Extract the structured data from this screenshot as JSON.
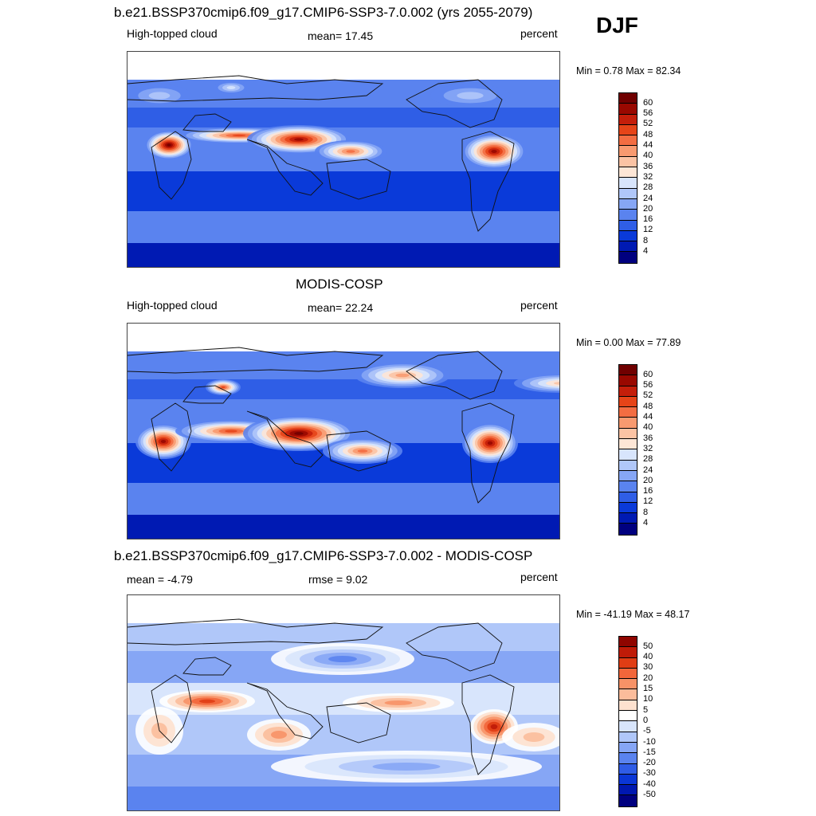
{
  "season": "DJF",
  "palette": {
    "levels12": [
      "#00007f",
      "#001ab3",
      "#0a3ad9",
      "#2f5ee6",
      "#5a83ef",
      "#86a6f5",
      "#b0c7f9",
      "#d8e5fc",
      "#fde6d6",
      "#fbc3a4",
      "#f89a70",
      "#f36d42",
      "#e64418",
      "#c41e0a",
      "#990800",
      "#700000"
    ],
    "diff": [
      "#00007f",
      "#0018b0",
      "#0a36d6",
      "#2f5ce6",
      "#5a83ef",
      "#86a6f5",
      "#b0c7f9",
      "#d8e5fc",
      "#ffffff",
      "#fde1cf",
      "#fbbc9b",
      "#f79267",
      "#f2663a",
      "#e03d14",
      "#bf1b08",
      "#8f0500"
    ]
  },
  "panels": [
    {
      "title": "b.e21.BSSP370cmip6.f09_g17.CMIP6-SSP3-7.0.002 (yrs 2055-2079)",
      "left_label": "High-topped cloud",
      "center_label": "mean=  17.45",
      "right_label": "percent",
      "minmax": "Min =   0.78 Max =  82.34",
      "colorbar_labels": [
        "60",
        "56",
        "52",
        "48",
        "44",
        "40",
        "36",
        "32",
        "28",
        "24",
        "20",
        "16",
        "12",
        "8",
        "4"
      ],
      "blobs": [
        {
          "cx": 52,
          "cy": 117,
          "rx": 30,
          "ry": 18,
          "level": 15
        },
        {
          "cx": 140,
          "cy": 105,
          "rx": 75,
          "ry": 10,
          "level": 12
        },
        {
          "cx": 215,
          "cy": 110,
          "rx": 65,
          "ry": 18,
          "level": 14
        },
        {
          "cx": 280,
          "cy": 125,
          "rx": 45,
          "ry": 14,
          "level": 11
        },
        {
          "cx": 460,
          "cy": 125,
          "rx": 40,
          "ry": 22,
          "level": 14
        },
        {
          "cx": 130,
          "cy": 45,
          "rx": 22,
          "ry": 8,
          "level": 7
        },
        {
          "cx": 430,
          "cy": 55,
          "rx": 50,
          "ry": 14,
          "level": 6
        },
        {
          "cx": 40,
          "cy": 55,
          "rx": 40,
          "ry": 14,
          "level": 6
        }
      ]
    },
    {
      "title": "MODIS-COSP",
      "left_label": "High-topped cloud",
      "center_label": "mean=  22.24",
      "right_label": "percent",
      "minmax": "Min =   0.00 Max =  77.89",
      "colorbar_labels": [
        "60",
        "56",
        "52",
        "48",
        "44",
        "40",
        "36",
        "32",
        "28",
        "24",
        "20",
        "16",
        "12",
        "8",
        "4"
      ],
      "blobs": [
        {
          "cx": 45,
          "cy": 148,
          "rx": 35,
          "ry": 22,
          "level": 14
        },
        {
          "cx": 130,
          "cy": 135,
          "rx": 70,
          "ry": 14,
          "level": 12
        },
        {
          "cx": 215,
          "cy": 138,
          "rx": 70,
          "ry": 22,
          "level": 15
        },
        {
          "cx": 295,
          "cy": 160,
          "rx": 50,
          "ry": 16,
          "level": 11
        },
        {
          "cx": 455,
          "cy": 150,
          "rx": 35,
          "ry": 25,
          "level": 14
        },
        {
          "cx": 345,
          "cy": 65,
          "rx": 60,
          "ry": 16,
          "level": 10
        },
        {
          "cx": 120,
          "cy": 80,
          "rx": 22,
          "ry": 10,
          "level": 12
        },
        {
          "cx": 545,
          "cy": 75,
          "rx": 60,
          "ry": 12,
          "level": 9
        }
      ]
    },
    {
      "title": "b.e21.BSSP370cmip6.f09_g17.CMIP6-SSP3-7.0.002 - MODIS-COSP",
      "left_label": "mean =  -4.79",
      "center_label": "rmse =    9.02",
      "right_label": "percent",
      "minmax": "Min = -41.19 Max =  48.17",
      "colorbar_labels": [
        "50",
        "40",
        "30",
        "20",
        "15",
        "10",
        "5",
        "0",
        "-5",
        "-10",
        "-15",
        "-20",
        "-30",
        "-40",
        "-50"
      ],
      "blobs": [
        {
          "cx": 100,
          "cy": 133,
          "rx": 60,
          "ry": 14,
          "level": 13
        },
        {
          "cx": 40,
          "cy": 170,
          "rx": 30,
          "ry": 30,
          "level": 10
        },
        {
          "cx": 190,
          "cy": 175,
          "rx": 40,
          "ry": 20,
          "level": 11
        },
        {
          "cx": 340,
          "cy": 135,
          "rx": 70,
          "ry": 12,
          "level": 11
        },
        {
          "cx": 460,
          "cy": 165,
          "rx": 30,
          "ry": 22,
          "level": 14
        },
        {
          "cx": 510,
          "cy": 178,
          "rx": 40,
          "ry": 18,
          "level": 10
        },
        {
          "cx": 270,
          "cy": 80,
          "rx": 90,
          "ry": 20,
          "level": 4
        },
        {
          "cx": 350,
          "cy": 215,
          "rx": 170,
          "ry": 20,
          "level": 5
        }
      ]
    }
  ]
}
